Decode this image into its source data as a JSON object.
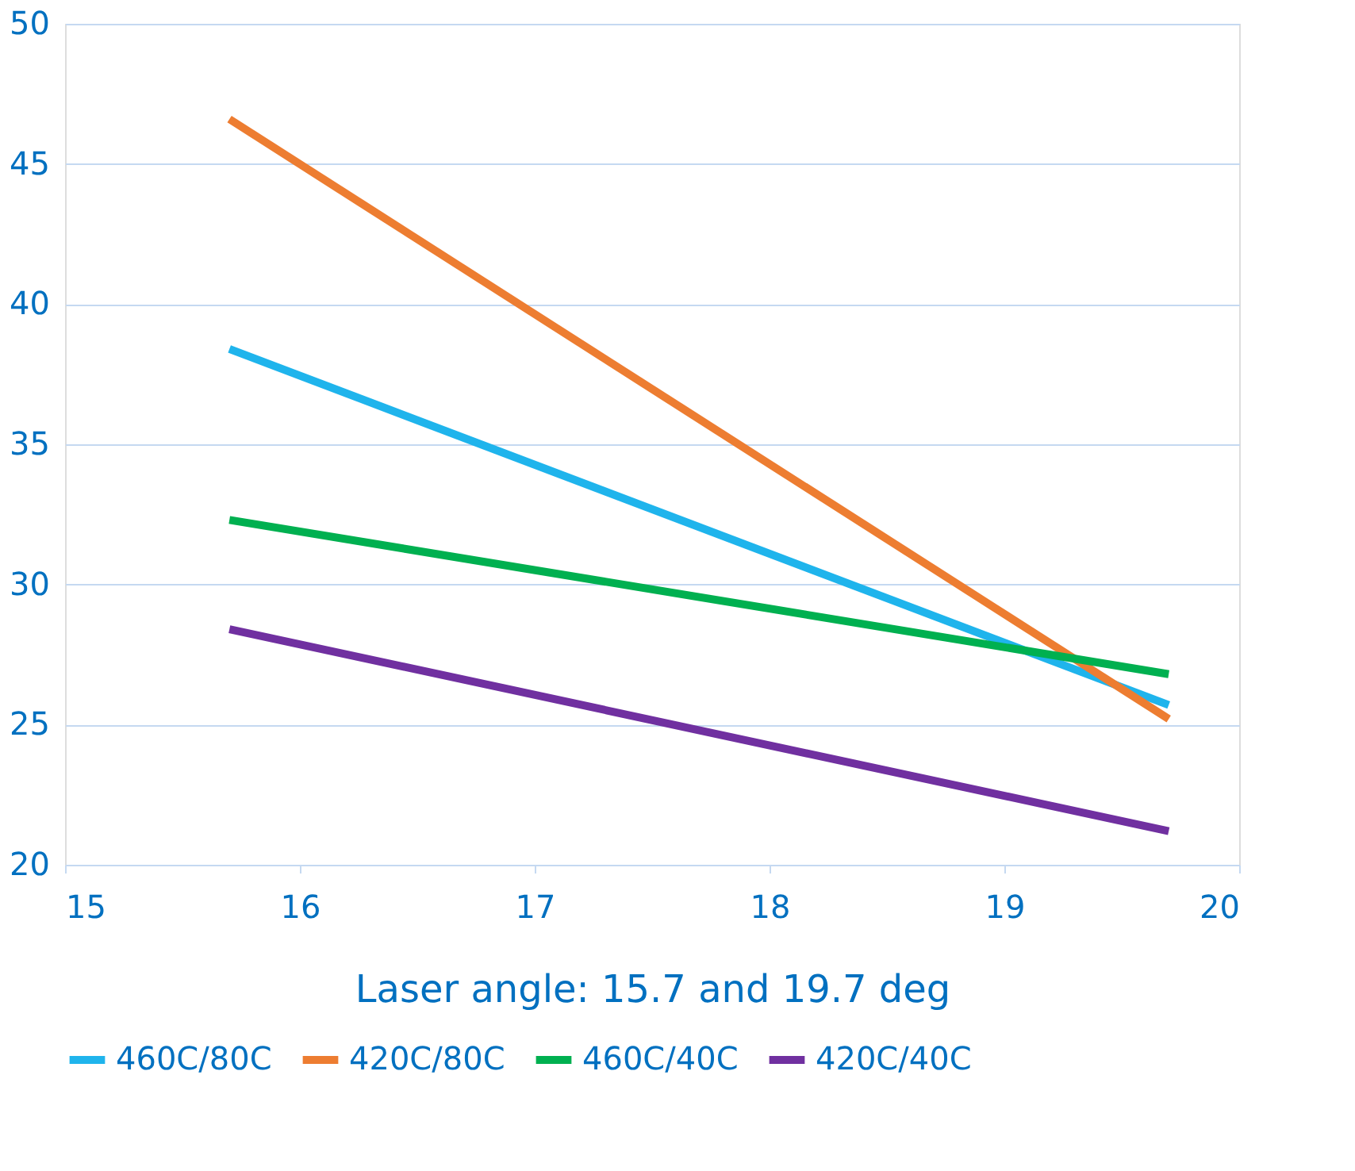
{
  "chart_data": {
    "type": "line",
    "xlabel": "Laser angle: 15.7 and 19.7 deg",
    "x": [
      15.7,
      19.7
    ],
    "series": [
      {
        "name": "460C/80C",
        "color": "#1fb4ec",
        "values": [
          38.4,
          25.7
        ]
      },
      {
        "name": "420C/80C",
        "color": "#ed7d31",
        "values": [
          46.6,
          25.2
        ]
      },
      {
        "name": "460C/40C",
        "color": "#00b050",
        "values": [
          32.3,
          26.8
        ]
      },
      {
        "name": "420C/40C",
        "color": "#7030a0",
        "values": [
          28.4,
          21.2
        ]
      }
    ],
    "xlim": [
      15,
      20
    ],
    "xticks": [
      15,
      16,
      17,
      18,
      19,
      20
    ],
    "ylim": [
      20,
      50
    ],
    "yticks": [
      20,
      25,
      30,
      35,
      40,
      45,
      50
    ],
    "grid": "y",
    "legend": "bottom",
    "marker": "none",
    "line_style": "solid"
  }
}
